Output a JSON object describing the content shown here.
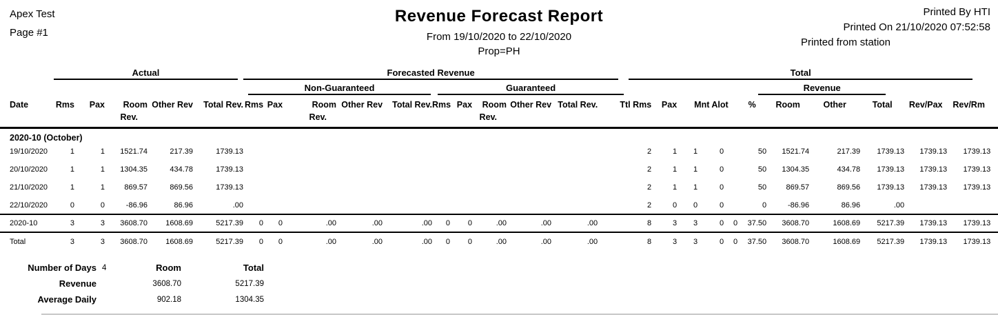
{
  "page": {
    "company": "Apex Test",
    "page_label": "Page #1",
    "title": "Revenue Forecast Report",
    "date_range": "From 19/10/2020 to 22/10/2020",
    "prop_filter": "Prop=PH",
    "printed_by": "Printed By HTI",
    "printed_on": "Printed On 21/10/2020 07:52:58",
    "printed_from": "Printed from station"
  },
  "colors": {
    "text": "#000000",
    "rules": "#000000",
    "bottom_rule": "#c6c6c6"
  },
  "table": {
    "groups": {
      "actual": "Actual",
      "forecasted": "Forecasted Revenue",
      "total": "Total",
      "non_guaranteed": "Non-Guaranteed",
      "guaranteed": "Guaranteed",
      "revenue": "Revenue"
    },
    "header": {
      "date": "Date",
      "rms": "Rms",
      "pax": "Pax",
      "room": "Room",
      "rev2": "Rev.",
      "other_rev": "Other Rev",
      "total_rev": "Total Rev.",
      "ttl_rms": "Ttl Rms",
      "mnt_alot": "Mnt Alot",
      "pct": "%",
      "room_total": "Room",
      "other_total": "Other",
      "total_total": "Total",
      "rev_pax": "Rev/Pax",
      "rev_rm": "Rev/Rm"
    },
    "body": [
      {
        "type": "month",
        "label": "2020-10 (October)"
      },
      {
        "type": "day",
        "cells": [
          "19/10/2020",
          "1",
          "1",
          "1521.74",
          "217.39",
          "1739.13",
          "",
          "",
          "",
          "",
          "",
          "",
          "",
          "",
          "",
          "",
          "2",
          "1",
          "1",
          "0",
          "",
          "50",
          "1521.74",
          "217.39",
          "1739.13",
          "1739.13",
          "1739.13"
        ]
      },
      {
        "type": "day",
        "cells": [
          "20/10/2020",
          "1",
          "1",
          "1304.35",
          "434.78",
          "1739.13",
          "",
          "",
          "",
          "",
          "",
          "",
          "",
          "",
          "",
          "",
          "2",
          "1",
          "1",
          "0",
          "",
          "50",
          "1304.35",
          "434.78",
          "1739.13",
          "1739.13",
          "1739.13"
        ]
      },
      {
        "type": "day",
        "cells": [
          "21/10/2020",
          "1",
          "1",
          "869.57",
          "869.56",
          "1739.13",
          "",
          "",
          "",
          "",
          "",
          "",
          "",
          "",
          "",
          "",
          "2",
          "1",
          "1",
          "0",
          "",
          "50",
          "869.57",
          "869.56",
          "1739.13",
          "1739.13",
          "1739.13"
        ]
      },
      {
        "type": "day",
        "cells": [
          "22/10/2020",
          "0",
          "0",
          "-86.96",
          "86.96",
          ".00",
          "",
          "",
          "",
          "",
          "",
          "",
          "",
          "",
          "",
          "",
          "2",
          "0",
          "0",
          "0",
          "",
          "0",
          "-86.96",
          "86.96",
          ".00",
          "",
          ""
        ]
      },
      {
        "type": "summary",
        "cells": [
          "2020-10",
          "3",
          "3",
          "3608.70",
          "1608.69",
          "5217.39",
          "0",
          "0",
          ".00",
          ".00",
          ".00",
          "0",
          "0",
          ".00",
          ".00",
          ".00",
          "8",
          "3",
          "3",
          "0",
          "0",
          "37.50",
          "3608.70",
          "1608.69",
          "5217.39",
          "1739.13",
          "1739.13"
        ]
      },
      {
        "type": "summary",
        "cells": [
          "Total",
          "3",
          "3",
          "3608.70",
          "1608.69",
          "5217.39",
          "0",
          "0",
          ".00",
          ".00",
          ".00",
          "0",
          "0",
          ".00",
          ".00",
          ".00",
          "8",
          "3",
          "3",
          "0",
          "0",
          "37.50",
          "3608.70",
          "1608.69",
          "5217.39",
          "1739.13",
          "1739.13"
        ]
      }
    ]
  },
  "footer": {
    "number_of_days_label": "Number of Days",
    "number_of_days_value": "4",
    "room_header": "Room",
    "total_header": "Total",
    "revenue_label": "Revenue",
    "revenue_room": "3608.70",
    "revenue_total": "5217.39",
    "average_daily_label": "Average Daily",
    "average_daily_room": "902.18",
    "average_daily_total": "1304.35"
  }
}
